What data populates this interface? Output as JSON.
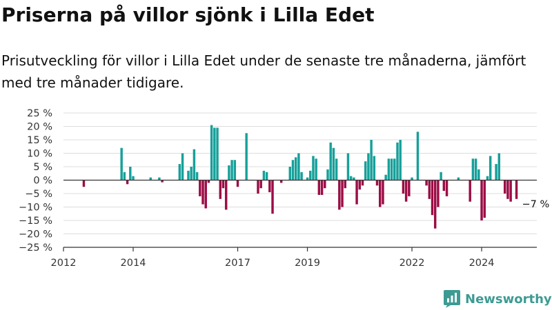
{
  "title": "Priserna på villor sjönk i Lilla Edet",
  "subtitle": "Prisutveckling för villor i Lilla Edet under de senaste tre månaderna, jämfört med tre månader tidigare.",
  "brand": "Newsworthy",
  "chart_data": {
    "type": "bar",
    "x_unit": "month",
    "x_range": [
      "2012-01",
      "2025-08"
    ],
    "x_ticks": [
      {
        "date": "2012-01",
        "label": "2012"
      },
      {
        "date": "2014-01",
        "label": "2014"
      },
      {
        "date": "2017-01",
        "label": "2017"
      },
      {
        "date": "2019-01",
        "label": "2019"
      },
      {
        "date": "2022-01",
        "label": "2022"
      },
      {
        "date": "2024-01",
        "label": "2024"
      }
    ],
    "ylim": [
      -25,
      25
    ],
    "y_ticks": [
      {
        "value": 25,
        "label": "25 %"
      },
      {
        "value": 20,
        "label": "20 %"
      },
      {
        "value": 15,
        "label": "15 %"
      },
      {
        "value": 10,
        "label": "10 %"
      },
      {
        "value": 5,
        "label": "5 %"
      },
      {
        "value": 0,
        "label": "0 %"
      },
      {
        "value": -5,
        "label": "−5 %"
      },
      {
        "value": -10,
        "label": "−10 %"
      },
      {
        "value": -15,
        "label": "−15 %"
      },
      {
        "value": -20,
        "label": "−20 %"
      },
      {
        "value": -25,
        "label": "−25 %"
      }
    ],
    "grid": true,
    "colors": {
      "positive": "#17a09a",
      "negative": "#9b0d45"
    },
    "series": [
      {
        "values": [
          {
            "x": "2012-08",
            "y": -2.5
          },
          {
            "x": "2013-09",
            "y": 12
          },
          {
            "x": "2013-10",
            "y": 3
          },
          {
            "x": "2013-11",
            "y": -1.5
          },
          {
            "x": "2013-12",
            "y": 5
          },
          {
            "x": "2014-01",
            "y": 1.5
          },
          {
            "x": "2014-07",
            "y": 1
          },
          {
            "x": "2014-10",
            "y": 1
          },
          {
            "x": "2014-11",
            "y": -0.8
          },
          {
            "x": "2015-05",
            "y": 6
          },
          {
            "x": "2015-06",
            "y": 10
          },
          {
            "x": "2015-08",
            "y": 3.5
          },
          {
            "x": "2015-09",
            "y": 5
          },
          {
            "x": "2015-10",
            "y": 11.5
          },
          {
            "x": "2015-11",
            "y": 3
          },
          {
            "x": "2015-12",
            "y": -6
          },
          {
            "x": "2016-01",
            "y": -9
          },
          {
            "x": "2016-02",
            "y": -10.5
          },
          {
            "x": "2016-03",
            "y": -1
          },
          {
            "x": "2016-04",
            "y": 20.5
          },
          {
            "x": "2016-05",
            "y": 19.5
          },
          {
            "x": "2016-06",
            "y": 19.5
          },
          {
            "x": "2016-07",
            "y": -7
          },
          {
            "x": "2016-08",
            "y": -3
          },
          {
            "x": "2016-09",
            "y": -11
          },
          {
            "x": "2016-10",
            "y": 5.5
          },
          {
            "x": "2016-11",
            "y": 7.5
          },
          {
            "x": "2016-12",
            "y": 7.5
          },
          {
            "x": "2017-01",
            "y": -2.5
          },
          {
            "x": "2017-04",
            "y": 17.5
          },
          {
            "x": "2017-08",
            "y": -5
          },
          {
            "x": "2017-09",
            "y": -3
          },
          {
            "x": "2017-10",
            "y": 3.5
          },
          {
            "x": "2017-11",
            "y": 3
          },
          {
            "x": "2017-12",
            "y": -4.5
          },
          {
            "x": "2018-01",
            "y": -12.5
          },
          {
            "x": "2018-04",
            "y": -1
          },
          {
            "x": "2018-07",
            "y": 5
          },
          {
            "x": "2018-08",
            "y": 7.5
          },
          {
            "x": "2018-09",
            "y": 8.5
          },
          {
            "x": "2018-10",
            "y": 10
          },
          {
            "x": "2018-11",
            "y": 3
          },
          {
            "x": "2019-01",
            "y": 1
          },
          {
            "x": "2019-02",
            "y": 3.5
          },
          {
            "x": "2019-03",
            "y": 9
          },
          {
            "x": "2019-04",
            "y": 8
          },
          {
            "x": "2019-05",
            "y": -5.5
          },
          {
            "x": "2019-06",
            "y": -5.5
          },
          {
            "x": "2019-07",
            "y": -3
          },
          {
            "x": "2019-08",
            "y": 4
          },
          {
            "x": "2019-09",
            "y": 14
          },
          {
            "x": "2019-10",
            "y": 12
          },
          {
            "x": "2019-11",
            "y": 8
          },
          {
            "x": "2019-12",
            "y": -11
          },
          {
            "x": "2020-01",
            "y": -10
          },
          {
            "x": "2020-02",
            "y": -3
          },
          {
            "x": "2020-03",
            "y": 10
          },
          {
            "x": "2020-04",
            "y": 1.5
          },
          {
            "x": "2020-05",
            "y": 1
          },
          {
            "x": "2020-06",
            "y": -9
          },
          {
            "x": "2020-07",
            "y": -3.5
          },
          {
            "x": "2020-08",
            "y": -2
          },
          {
            "x": "2020-09",
            "y": 7
          },
          {
            "x": "2020-10",
            "y": 10
          },
          {
            "x": "2020-11",
            "y": 15
          },
          {
            "x": "2020-12",
            "y": 9
          },
          {
            "x": "2021-01",
            "y": -2
          },
          {
            "x": "2021-02",
            "y": -10
          },
          {
            "x": "2021-03",
            "y": -9
          },
          {
            "x": "2021-04",
            "y": 2
          },
          {
            "x": "2021-05",
            "y": 8
          },
          {
            "x": "2021-06",
            "y": 8
          },
          {
            "x": "2021-07",
            "y": 8
          },
          {
            "x": "2021-08",
            "y": 14
          },
          {
            "x": "2021-09",
            "y": 15
          },
          {
            "x": "2021-10",
            "y": -5
          },
          {
            "x": "2021-11",
            "y": -8
          },
          {
            "x": "2021-12",
            "y": -6
          },
          {
            "x": "2022-01",
            "y": 1
          },
          {
            "x": "2022-03",
            "y": 18
          },
          {
            "x": "2022-06",
            "y": -2
          },
          {
            "x": "2022-07",
            "y": -7
          },
          {
            "x": "2022-08",
            "y": -13
          },
          {
            "x": "2022-09",
            "y": -18
          },
          {
            "x": "2022-10",
            "y": -10
          },
          {
            "x": "2022-11",
            "y": 3
          },
          {
            "x": "2022-12",
            "y": -4
          },
          {
            "x": "2023-01",
            "y": -6
          },
          {
            "x": "2023-05",
            "y": 1
          },
          {
            "x": "2023-09",
            "y": -8
          },
          {
            "x": "2023-10",
            "y": 8
          },
          {
            "x": "2023-11",
            "y": 8
          },
          {
            "x": "2023-12",
            "y": 4
          },
          {
            "x": "2024-01",
            "y": -15
          },
          {
            "x": "2024-02",
            "y": -14
          },
          {
            "x": "2024-03",
            "y": 1.5
          },
          {
            "x": "2024-04",
            "y": 9
          },
          {
            "x": "2024-06",
            "y": 6
          },
          {
            "x": "2024-07",
            "y": 10
          },
          {
            "x": "2024-09",
            "y": -5
          },
          {
            "x": "2024-10",
            "y": -7
          },
          {
            "x": "2024-11",
            "y": -8
          },
          {
            "x": "2025-01",
            "y": -7
          }
        ]
      }
    ],
    "annotations": [
      {
        "x": "2025-01",
        "y": -7,
        "text": "−7 %"
      }
    ]
  }
}
